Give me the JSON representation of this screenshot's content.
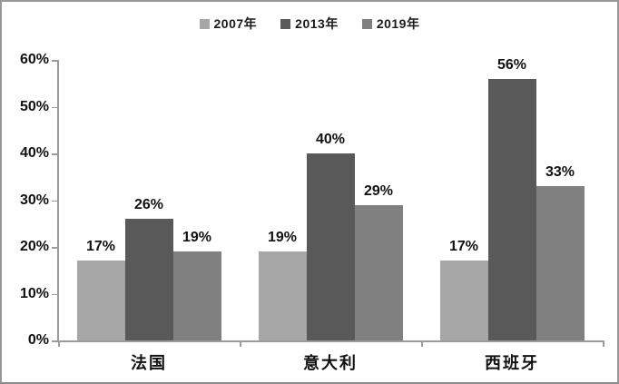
{
  "chart_data": {
    "type": "bar",
    "title": "",
    "xlabel": "",
    "ylabel": "",
    "categories": [
      "法国",
      "意大利",
      "西班牙"
    ],
    "series": [
      {
        "name": "2007年",
        "color": "#a6a6a6",
        "values": [
          17,
          19,
          17
        ]
      },
      {
        "name": "2013年",
        "color": "#595959",
        "values": [
          26,
          40,
          56
        ]
      },
      {
        "name": "2019年",
        "color": "#808080",
        "values": [
          19,
          29,
          33
        ]
      }
    ],
    "data_labels": [
      "17%",
      "26%",
      "19%",
      "19%",
      "40%",
      "29%",
      "17%",
      "56%",
      "33%"
    ],
    "value_suffix": "%",
    "ylim": [
      0,
      60
    ],
    "ytick_step": 10,
    "ytick_labels": [
      "0%",
      "10%",
      "20%",
      "30%",
      "40%",
      "50%",
      "60%"
    ],
    "grid": false,
    "legend_position": "top"
  },
  "style": {
    "axis_color": "#9b9b9b",
    "text_color": "#111111",
    "background": "#ffffff",
    "border_color": "#979797"
  }
}
